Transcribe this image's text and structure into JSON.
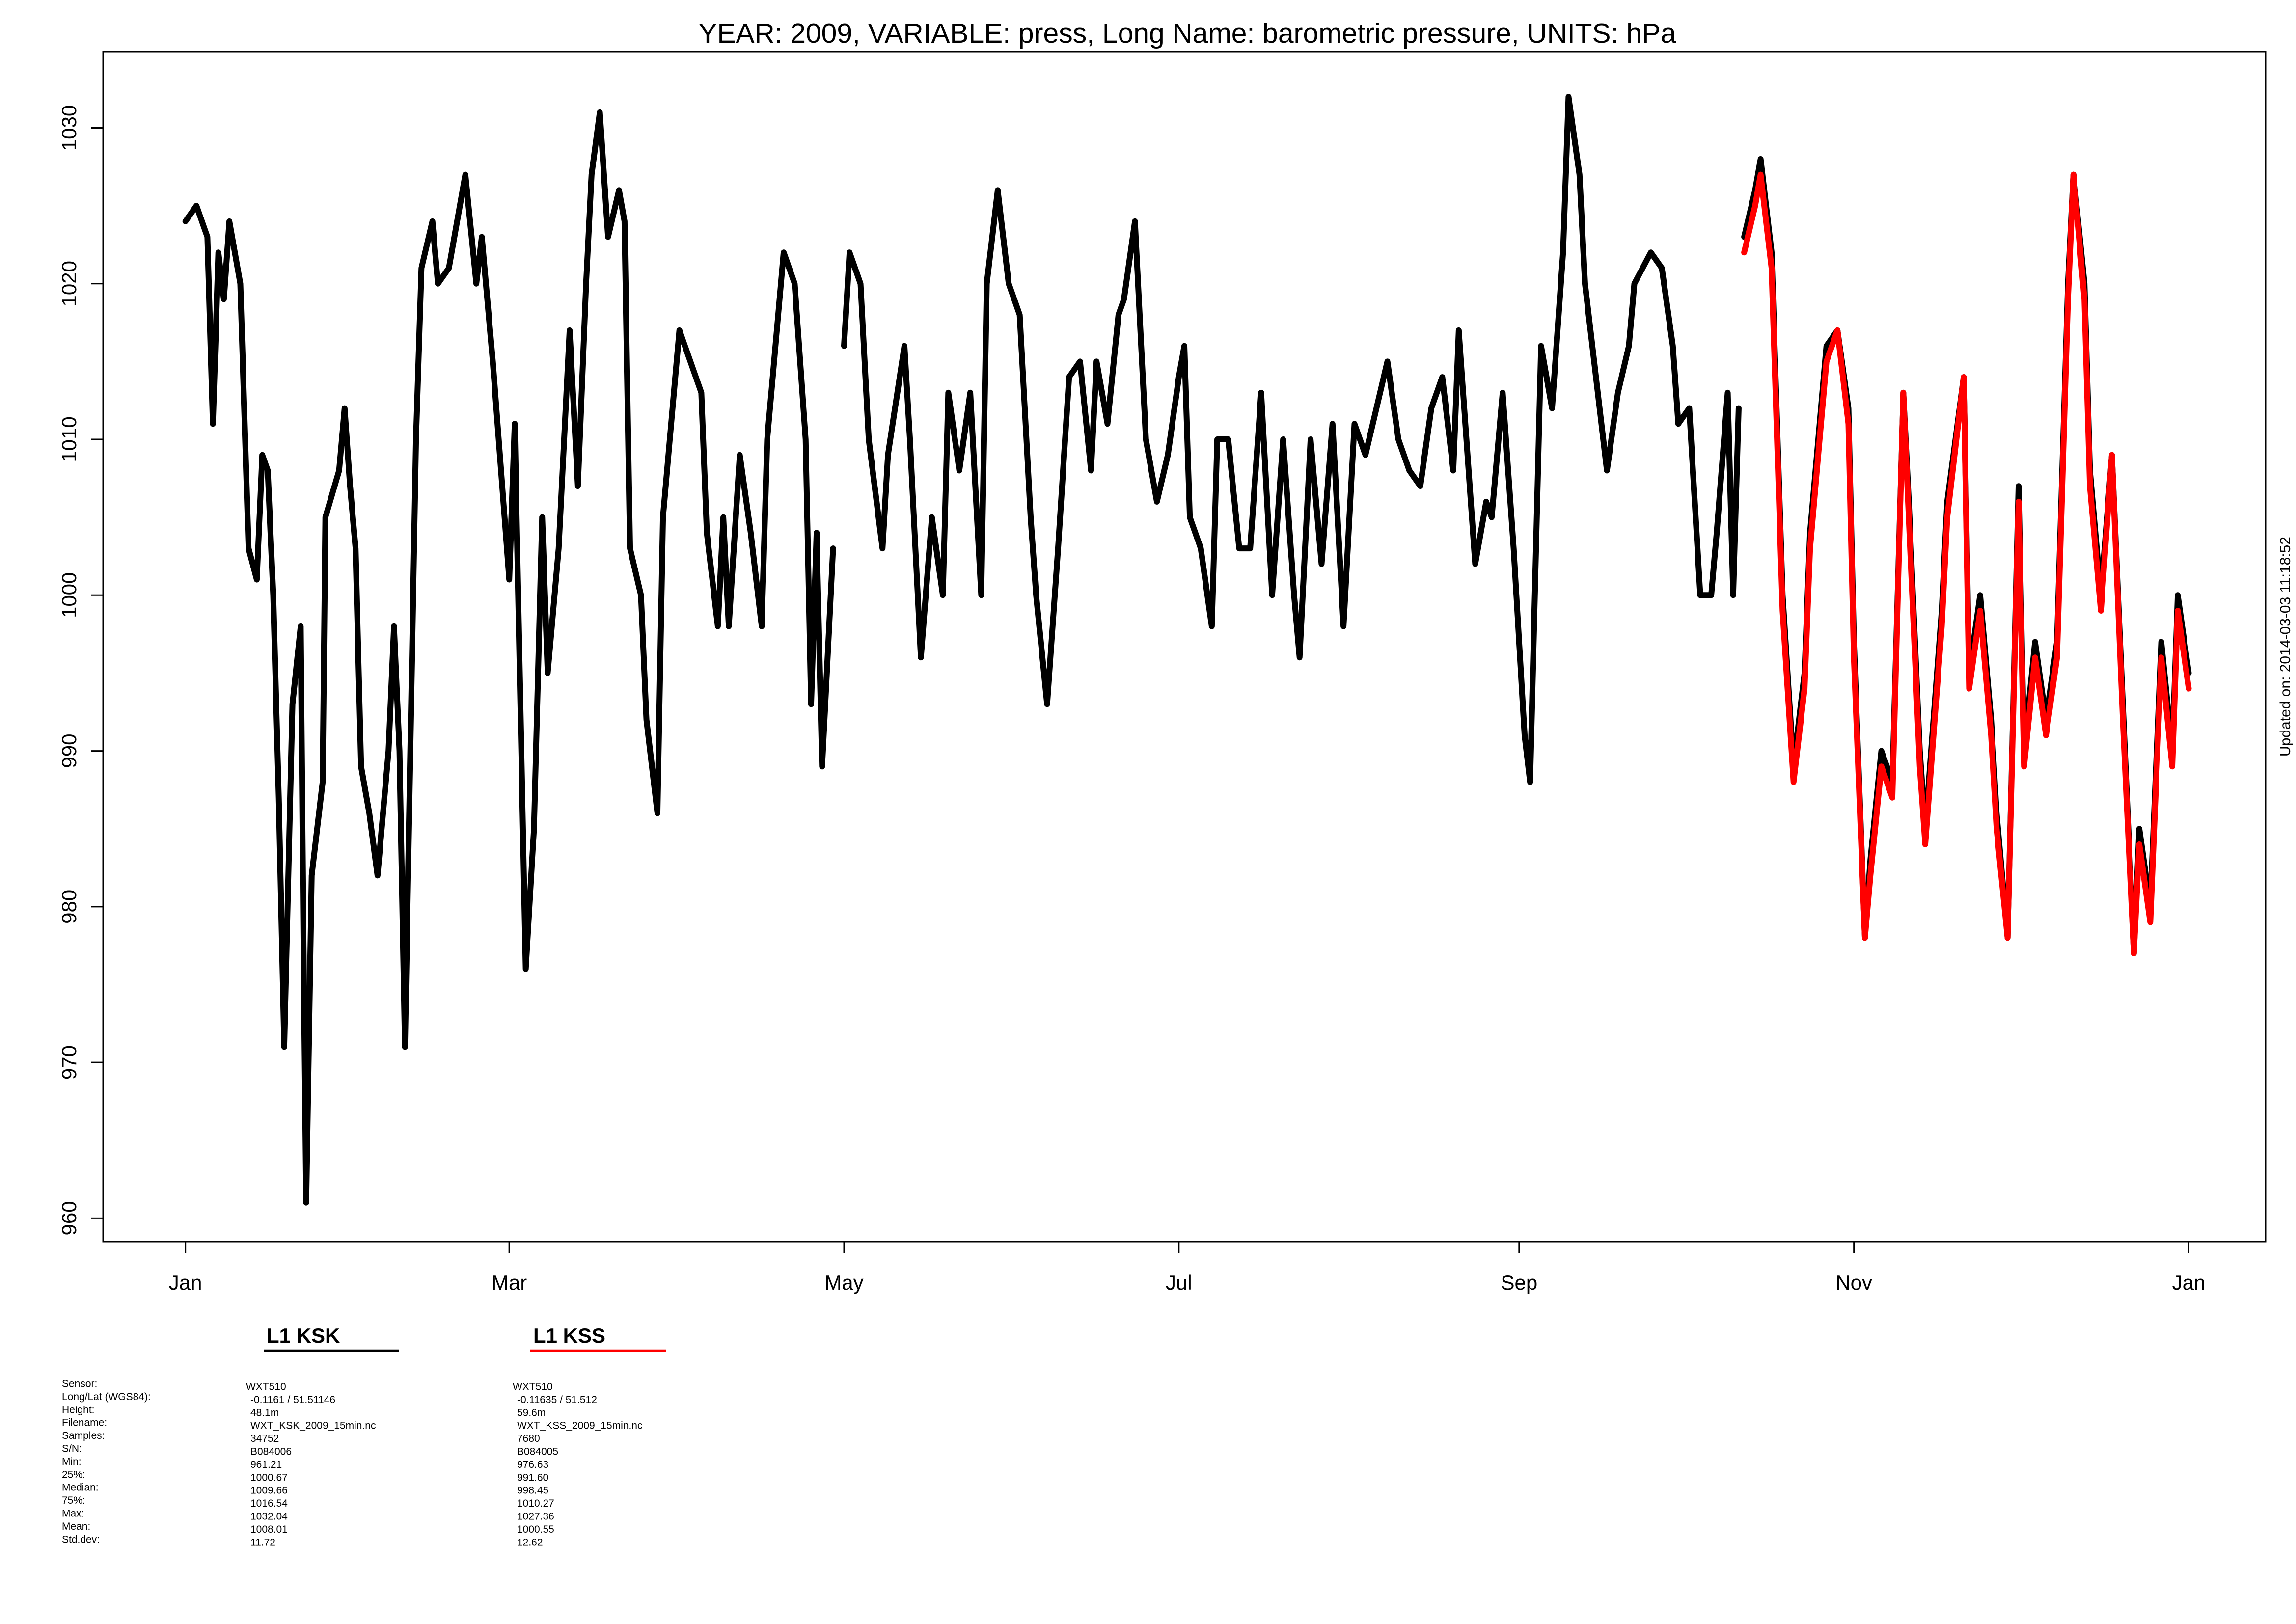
{
  "chart_data": {
    "type": "line",
    "title": "YEAR: 2009, VARIABLE: press, Long Name: barometric  pressure, UNITS: hPa",
    "annotation": "Updated on: 2014-03-03 11:18:52",
    "xlim": [
      -14,
      380
    ],
    "ylim": [
      958.5,
      1034.9
    ],
    "xticks": [
      {
        "value": 1,
        "label": "Jan"
      },
      {
        "value": 60,
        "label": "Mar"
      },
      {
        "value": 121,
        "label": "May"
      },
      {
        "value": 182,
        "label": "Jul"
      },
      {
        "value": 244,
        "label": "Sep"
      },
      {
        "value": 305,
        "label": "Nov"
      },
      {
        "value": 366,
        "label": "Jan"
      }
    ],
    "yticks": [
      960,
      970,
      980,
      990,
      1000,
      1010,
      1020,
      1030
    ],
    "series": [
      {
        "name": "L1 KSK",
        "color": "#000000",
        "x": [
          1,
          3,
          5,
          6,
          7,
          8,
          9,
          11,
          12.5,
          14,
          15,
          16,
          17,
          18,
          19,
          20.5,
          22,
          22.5,
          23,
          24,
          26,
          26.5,
          29,
          30,
          31,
          32,
          33,
          34.5,
          36,
          38,
          39,
          40,
          41,
          43,
          44,
          46,
          47,
          49,
          52,
          54,
          55,
          57,
          60,
          61,
          63,
          64.5,
          66,
          67,
          69,
          71,
          72.5,
          74,
          75,
          76.5,
          78,
          80,
          81,
          82,
          84,
          85,
          87,
          88,
          91,
          93,
          95,
          96,
          98,
          99,
          100,
          102,
          104,
          106,
          107,
          110,
          112,
          114,
          115,
          116,
          117,
          119,
          120,
          121,
          122,
          124,
          125.5,
          128,
          129,
          132,
          133,
          135,
          137,
          139,
          140,
          142,
          144,
          146,
          147,
          149,
          151,
          153,
          155,
          156,
          158,
          160,
          162,
          164,
          166,
          167,
          169,
          171,
          172,
          174,
          176,
          178,
          180,
          182,
          183,
          184,
          186,
          188,
          189,
          191,
          193,
          195,
          197,
          199,
          201,
          203,
          204,
          206,
          208,
          210,
          212,
          214,
          216,
          218,
          220,
          222,
          224,
          226,
          228,
          230,
          232,
          233,
          236,
          238,
          239,
          241,
          243,
          245,
          246,
          248,
          250,
          252,
          253,
          255,
          256,
          258,
          260,
          262,
          264,
          265,
          268,
          270,
          272,
          273,
          275,
          277,
          279,
          280,
          282,
          283,
          284,
          284.5,
          285,
          287,
          288,
          290,
          292,
          294,
          296,
          297,
          300,
          302,
          304,
          305,
          307,
          308,
          310,
          312,
          314,
          315,
          317,
          318,
          321,
          322,
          325,
          326,
          328,
          330,
          331,
          333,
          335,
          336,
          338,
          340,
          342,
          344,
          345,
          347,
          348,
          350,
          352,
          354,
          356,
          357,
          359,
          361,
          363,
          364,
          366
        ],
        "values": [
          1024,
          1025,
          1023,
          1011,
          1022,
          1019,
          1024,
          1020,
          1003,
          1001,
          1009,
          1008,
          1000,
          987,
          971,
          993,
          998,
          978,
          961,
          982,
          988,
          1005,
          1008,
          1012,
          1007,
          1003,
          989,
          986,
          982,
          990,
          998,
          990,
          971,
          1010,
          1021,
          1024,
          1020,
          1021,
          1027,
          1020,
          1023,
          1015,
          1001,
          1011,
          976,
          985,
          1005,
          995,
          1003,
          1017,
          1007,
          1020,
          1027,
          1031,
          1023,
          1026,
          1024,
          1003,
          1000,
          992,
          986,
          1005,
          1017,
          1015,
          1013,
          1004,
          998,
          1005,
          998,
          1009,
          1004,
          998,
          1010,
          1022,
          1020,
          1010,
          993,
          1004,
          989,
          1003,
          null,
          1016,
          1022,
          1020,
          1010,
          1003,
          1009,
          1016,
          1010,
          996,
          1005,
          1000,
          1013,
          1008,
          1013,
          1000,
          1020,
          1026,
          1020,
          1018,
          1005,
          1000,
          993,
          1003,
          1014,
          1015,
          1008,
          1015,
          1011,
          1018,
          1019,
          1024,
          1010,
          1006,
          1009,
          1014,
          1016,
          1005,
          1003,
          998,
          1010,
          1010,
          1003,
          1003,
          1013,
          1000,
          1010,
          1000,
          996,
          1010,
          1002,
          1011,
          998,
          1011,
          1009,
          1012,
          1015,
          1010,
          1008,
          1007,
          1012,
          1014,
          1008,
          1017,
          1002,
          1006,
          1005,
          1013,
          1003,
          991,
          988,
          1016,
          1012,
          1022,
          1032,
          1027,
          1020,
          1014,
          1008,
          1013,
          1016,
          1020,
          1022,
          1021,
          1016,
          1011,
          1012,
          1000,
          1000,
          1004,
          1013,
          1000,
          1012,
          null,
          1023,
          1026,
          1028,
          1022,
          1000,
          989,
          995,
          1004,
          1016,
          1017,
          1012,
          997,
          978,
          983,
          990,
          988,
          1013,
          1006,
          990,
          985,
          999,
          1006,
          1014,
          995,
          1000,
          992,
          986,
          978,
          1007,
          990,
          997,
          992,
          997,
          1020,
          1027,
          1020,
          1008,
          1000,
          1009,
          993,
          977,
          985,
          980,
          997,
          990,
          1000,
          995
        ]
      },
      {
        "name": "L1 KSS",
        "color": "#ff0000",
        "x": [
          285,
          287,
          288,
          290,
          292,
          294,
          296,
          297,
          300,
          302,
          304,
          305,
          307,
          308,
          310,
          312,
          314,
          315,
          317,
          318,
          321,
          322,
          325,
          326,
          328,
          330,
          331,
          333,
          335,
          336,
          338,
          340,
          342,
          344,
          345,
          347,
          348,
          350,
          352,
          354,
          356,
          357,
          359,
          361,
          363,
          364,
          366
        ],
        "values": [
          1022,
          1025,
          1027,
          1021,
          999,
          988,
          994,
          1003,
          1015,
          1017,
          1011,
          996,
          978,
          982,
          989,
          987,
          1013,
          1005,
          989,
          984,
          998,
          1005,
          1014,
          994,
          999,
          991,
          985,
          978,
          1006,
          989,
          996,
          991,
          996,
          1019,
          1027,
          1019,
          1007,
          999,
          1009,
          992,
          977,
          984,
          979,
          996,
          989,
          999,
          994
        ]
      }
    ],
    "stats": {
      "labels": [
        "Sensor:",
        "Long/Lat (WGS84):",
        "Height:",
        "Filename:",
        "Samples:",
        "S/N:",
        "Min:",
        "25%:",
        "Median:",
        "75%:",
        "Max:",
        "Mean:",
        "Std.dev:"
      ],
      "columns": [
        [
          "WXT510",
          "-0.1161 / 51.51146",
          "48.1m",
          "WXT_KSK_2009_15min.nc",
          "34752",
          "B084006",
          "961.21",
          "1000.67",
          "1009.66",
          "1016.54",
          "1032.04",
          "1008.01",
          "11.72"
        ],
        [
          "WXT510",
          "-0.11635 / 51.512",
          "59.6m",
          "WXT_KSS_2009_15min.nc",
          "7680",
          "B084005",
          "976.63",
          "991.60",
          "998.45",
          "1010.27",
          "1027.36",
          "1000.55",
          "12.62"
        ]
      ]
    }
  }
}
